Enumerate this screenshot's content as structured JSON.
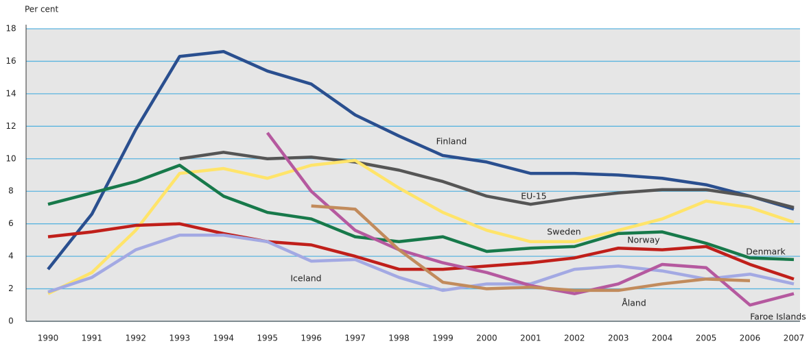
{
  "chart_data": {
    "type": "line",
    "y_label": "Per cent",
    "categories": [
      "1990",
      "1991",
      "1992",
      "1993",
      "1994",
      "1995",
      "1996",
      "1997",
      "1998",
      "1999",
      "2000",
      "2001",
      "2002",
      "2003",
      "2004",
      "2005",
      "2006",
      "2007"
    ],
    "ylim": [
      0,
      18
    ],
    "yticks": [
      0,
      2,
      4,
      6,
      8,
      10,
      12,
      14,
      16,
      18
    ],
    "grid": true,
    "series": [
      {
        "name": "Finland",
        "color": "#2a4f8f",
        "values": [
          3.2,
          6.6,
          11.8,
          16.3,
          16.6,
          15.4,
          14.6,
          12.7,
          11.4,
          10.2,
          9.8,
          9.1,
          9.1,
          9.0,
          8.8,
          8.4,
          7.7,
          6.9
        ]
      },
      {
        "name": "EU-15",
        "color": "#555555",
        "values": [
          null,
          null,
          null,
          10.0,
          10.4,
          10.0,
          10.1,
          9.8,
          9.3,
          8.6,
          7.7,
          7.2,
          7.6,
          7.9,
          8.1,
          8.1,
          7.7,
          7.0
        ]
      },
      {
        "name": "Sweden",
        "color": "#ffe46a",
        "values": [
          1.7,
          3.0,
          5.6,
          9.1,
          9.4,
          8.8,
          9.6,
          9.9,
          8.2,
          6.7,
          5.6,
          4.9,
          4.9,
          5.6,
          6.3,
          7.4,
          7.0,
          6.1
        ]
      },
      {
        "name": "Denmark",
        "color": "#17794a",
        "values": [
          7.2,
          7.9,
          8.6,
          9.6,
          7.7,
          6.7,
          6.3,
          5.2,
          4.9,
          5.2,
          4.3,
          4.5,
          4.6,
          5.4,
          5.5,
          4.8,
          3.9,
          3.8
        ]
      },
      {
        "name": "Norway",
        "color": "#c01f1a",
        "values": [
          5.2,
          5.5,
          5.9,
          6.0,
          5.4,
          4.9,
          4.7,
          4.0,
          3.2,
          3.2,
          3.4,
          3.6,
          3.9,
          4.5,
          4.4,
          4.6,
          3.5,
          2.6
        ]
      },
      {
        "name": "Iceland",
        "color": "#a3a9e3",
        "values": [
          1.8,
          2.7,
          4.4,
          5.3,
          5.3,
          4.9,
          3.7,
          3.8,
          2.7,
          1.9,
          2.3,
          2.3,
          3.2,
          3.4,
          3.1,
          2.6,
          2.9,
          2.3
        ]
      },
      {
        "name": "Faroe Islands",
        "color": "#b5599f",
        "values": [
          null,
          null,
          null,
          null,
          null,
          11.6,
          8.0,
          5.6,
          4.4,
          3.6,
          3.0,
          2.2,
          1.7,
          2.3,
          3.5,
          3.3,
          1.0,
          1.7
        ]
      },
      {
        "name": "Åland",
        "color": "#c28b5c",
        "values": [
          null,
          null,
          null,
          null,
          null,
          null,
          7.1,
          6.9,
          4.4,
          2.4,
          2.0,
          2.1,
          1.9,
          1.9,
          2.3,
          2.6,
          2.5,
          null
        ]
      }
    ]
  }
}
